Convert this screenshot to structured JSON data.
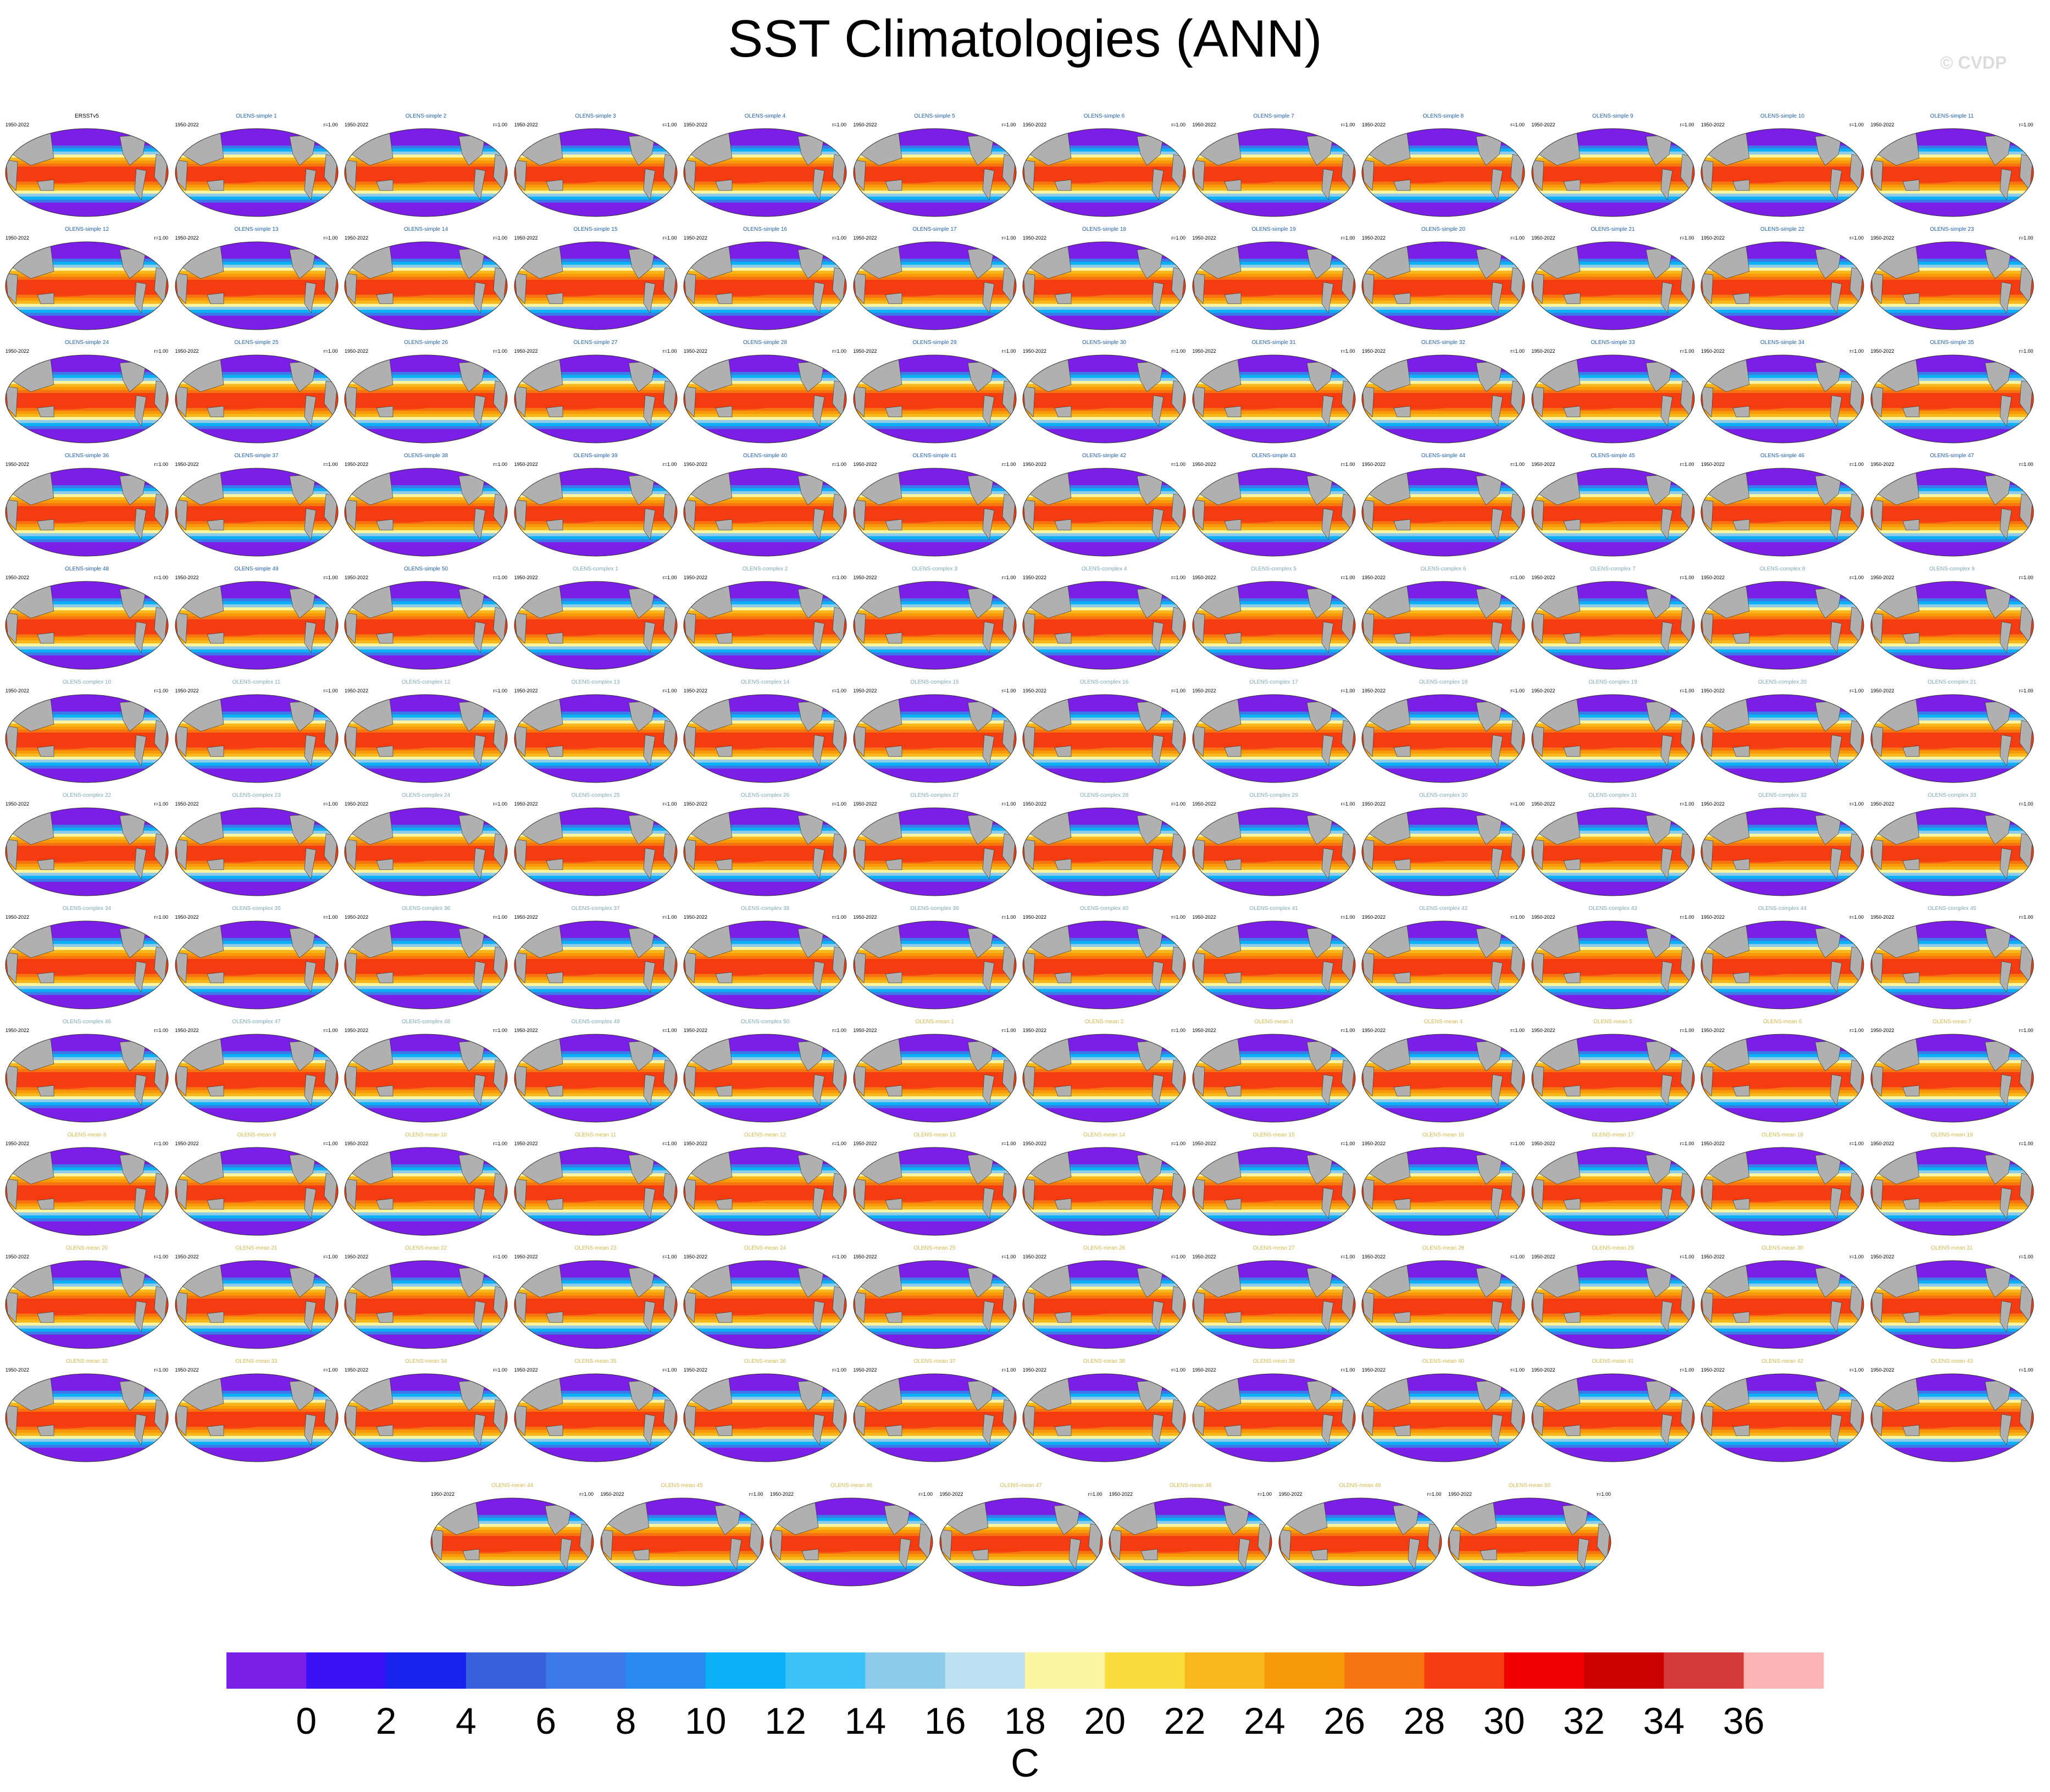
{
  "page": {
    "title": "SST Climatologies (ANN)",
    "watermark": "© CVDP"
  },
  "chart_data": {
    "type": "heatmap",
    "title": "SST Climatologies (ANN)",
    "description_of_panels": "Grid of global annual-mean SST climatology maps (oval projection), one per dataset",
    "panel_period": "1950-2022",
    "panel_pattern_corr": "r=1.00",
    "panels": [
      {
        "name": "ERSSTv5",
        "group": "obs"
      },
      {
        "name": "OLENS-simple 1",
        "group": "simple"
      },
      {
        "name": "OLENS-simple 2",
        "group": "simple"
      },
      {
        "name": "OLENS-simple 3",
        "group": "simple"
      },
      {
        "name": "OLENS-simple 4",
        "group": "simple"
      },
      {
        "name": "OLENS-simple 5",
        "group": "simple"
      },
      {
        "name": "OLENS-simple 6",
        "group": "simple"
      },
      {
        "name": "OLENS-simple 7",
        "group": "simple"
      },
      {
        "name": "OLENS-simple 8",
        "group": "simple"
      },
      {
        "name": "OLENS-simple 9",
        "group": "simple"
      },
      {
        "name": "OLENS-simple 10",
        "group": "simple"
      },
      {
        "name": "OLENS-simple 11",
        "group": "simple"
      },
      {
        "name": "OLENS-simple 12",
        "group": "simple"
      },
      {
        "name": "OLENS-simple 13",
        "group": "simple"
      },
      {
        "name": "OLENS-simple 14",
        "group": "simple"
      },
      {
        "name": "OLENS-simple 15",
        "group": "simple"
      },
      {
        "name": "OLENS-simple 16",
        "group": "simple"
      },
      {
        "name": "OLENS-simple 17",
        "group": "simple"
      },
      {
        "name": "OLENS-simple 18",
        "group": "simple"
      },
      {
        "name": "OLENS-simple 19",
        "group": "simple"
      },
      {
        "name": "OLENS-simple 20",
        "group": "simple"
      },
      {
        "name": "OLENS-simple 21",
        "group": "simple"
      },
      {
        "name": "OLENS-simple 22",
        "group": "simple"
      },
      {
        "name": "OLENS-simple 23",
        "group": "simple"
      },
      {
        "name": "OLENS-simple 24",
        "group": "simple"
      },
      {
        "name": "OLENS-simple 25",
        "group": "simple"
      },
      {
        "name": "OLENS-simple 26",
        "group": "simple"
      },
      {
        "name": "OLENS-simple 27",
        "group": "simple"
      },
      {
        "name": "OLENS-simple 28",
        "group": "simple"
      },
      {
        "name": "OLENS-simple 29",
        "group": "simple"
      },
      {
        "name": "OLENS-simple 30",
        "group": "simple"
      },
      {
        "name": "OLENS-simple 31",
        "group": "simple"
      },
      {
        "name": "OLENS-simple 32",
        "group": "simple"
      },
      {
        "name": "OLENS-simple 33",
        "group": "simple"
      },
      {
        "name": "OLENS-simple 34",
        "group": "simple"
      },
      {
        "name": "OLENS-simple 35",
        "group": "simple"
      },
      {
        "name": "OLENS-simple 36",
        "group": "simple"
      },
      {
        "name": "OLENS-simple 37",
        "group": "simple"
      },
      {
        "name": "OLENS-simple 38",
        "group": "simple"
      },
      {
        "name": "OLENS-simple 39",
        "group": "simple"
      },
      {
        "name": "OLENS-simple 40",
        "group": "simple"
      },
      {
        "name": "OLENS-simple 41",
        "group": "simple"
      },
      {
        "name": "OLENS-simple 42",
        "group": "simple"
      },
      {
        "name": "OLENS-simple 43",
        "group": "simple"
      },
      {
        "name": "OLENS-simple 44",
        "group": "simple"
      },
      {
        "name": "OLENS-simple 45",
        "group": "simple"
      },
      {
        "name": "OLENS-simple 46",
        "group": "simple"
      },
      {
        "name": "OLENS-simple 47",
        "group": "simple"
      },
      {
        "name": "OLENS-simple 48",
        "group": "simple"
      },
      {
        "name": "OLENS-simple 49",
        "group": "simple"
      },
      {
        "name": "OLENS-simple 50",
        "group": "simple"
      },
      {
        "name": "OLENS-complex 1",
        "group": "complex"
      },
      {
        "name": "OLENS-complex 2",
        "group": "complex"
      },
      {
        "name": "OLENS-complex 3",
        "group": "complex"
      },
      {
        "name": "OLENS-complex 4",
        "group": "complex"
      },
      {
        "name": "OLENS-complex 5",
        "group": "complex"
      },
      {
        "name": "OLENS-complex 6",
        "group": "complex"
      },
      {
        "name": "OLENS-complex 7",
        "group": "complex"
      },
      {
        "name": "OLENS-complex 8",
        "group": "complex"
      },
      {
        "name": "OLENS-complex 9",
        "group": "complex"
      },
      {
        "name": "OLENS-complex 10",
        "group": "complex"
      },
      {
        "name": "OLENS-complex 11",
        "group": "complex"
      },
      {
        "name": "OLENS-complex 12",
        "group": "complex"
      },
      {
        "name": "OLENS-complex 13",
        "group": "complex"
      },
      {
        "name": "OLENS-complex 14",
        "group": "complex"
      },
      {
        "name": "OLENS-complex 15",
        "group": "complex"
      },
      {
        "name": "OLENS-complex 16",
        "group": "complex"
      },
      {
        "name": "OLENS-complex 17",
        "group": "complex"
      },
      {
        "name": "OLENS-complex 18",
        "group": "complex"
      },
      {
        "name": "OLENS-complex 19",
        "group": "complex"
      },
      {
        "name": "OLENS-complex 20",
        "group": "complex"
      },
      {
        "name": "OLENS-complex 21",
        "group": "complex"
      },
      {
        "name": "OLENS-complex 22",
        "group": "complex"
      },
      {
        "name": "OLENS-complex 23",
        "group": "complex"
      },
      {
        "name": "OLENS-complex 24",
        "group": "complex"
      },
      {
        "name": "OLENS-complex 25",
        "group": "complex"
      },
      {
        "name": "OLENS-complex 26",
        "group": "complex"
      },
      {
        "name": "OLENS-complex 27",
        "group": "complex"
      },
      {
        "name": "OLENS-complex 28",
        "group": "complex"
      },
      {
        "name": "OLENS-complex 29",
        "group": "complex"
      },
      {
        "name": "OLENS-complex 30",
        "group": "complex"
      },
      {
        "name": "OLENS-complex 31",
        "group": "complex"
      },
      {
        "name": "OLENS-complex 32",
        "group": "complex"
      },
      {
        "name": "OLENS-complex 33",
        "group": "complex"
      },
      {
        "name": "OLENS-complex 34",
        "group": "complex"
      },
      {
        "name": "OLENS-complex 35",
        "group": "complex"
      },
      {
        "name": "OLENS-complex 36",
        "group": "complex"
      },
      {
        "name": "OLENS-complex 37",
        "group": "complex"
      },
      {
        "name": "OLENS-complex 38",
        "group": "complex"
      },
      {
        "name": "OLENS-complex 39",
        "group": "complex"
      },
      {
        "name": "OLENS-complex 40",
        "group": "complex"
      },
      {
        "name": "OLENS-complex 41",
        "group": "complex"
      },
      {
        "name": "OLENS-complex 42",
        "group": "complex"
      },
      {
        "name": "OLENS-complex 43",
        "group": "complex"
      },
      {
        "name": "OLENS-complex 44",
        "group": "complex"
      },
      {
        "name": "OLENS-complex 45",
        "group": "complex"
      },
      {
        "name": "OLENS-complex 46",
        "group": "complex"
      },
      {
        "name": "OLENS-complex 47",
        "group": "complex"
      },
      {
        "name": "OLENS-complex 48",
        "group": "complex"
      },
      {
        "name": "OLENS-complex 49",
        "group": "complex"
      },
      {
        "name": "OLENS-complex 50",
        "group": "complex"
      },
      {
        "name": "OLENS-mean 1",
        "group": "mean"
      },
      {
        "name": "OLENS-mean 2",
        "group": "mean"
      },
      {
        "name": "OLENS-mean 3",
        "group": "mean"
      },
      {
        "name": "OLENS-mean 4",
        "group": "mean"
      },
      {
        "name": "OLENS-mean 5",
        "group": "mean"
      },
      {
        "name": "OLENS-mean 6",
        "group": "mean"
      },
      {
        "name": "OLENS-mean 7",
        "group": "mean"
      },
      {
        "name": "OLENS-mean 8",
        "group": "mean"
      },
      {
        "name": "OLENS-mean 9",
        "group": "mean"
      },
      {
        "name": "OLENS-mean 10",
        "group": "mean"
      },
      {
        "name": "OLENS-mean 11",
        "group": "mean"
      },
      {
        "name": "OLENS-mean 12",
        "group": "mean"
      },
      {
        "name": "OLENS-mean 13",
        "group": "mean"
      },
      {
        "name": "OLENS-mean 14",
        "group": "mean"
      },
      {
        "name": "OLENS-mean 15",
        "group": "mean"
      },
      {
        "name": "OLENS-mean 16",
        "group": "mean"
      },
      {
        "name": "OLENS-mean 17",
        "group": "mean"
      },
      {
        "name": "OLENS-mean 18",
        "group": "mean"
      },
      {
        "name": "OLENS-mean 19",
        "group": "mean"
      },
      {
        "name": "OLENS-mean 20",
        "group": "mean"
      },
      {
        "name": "OLENS-mean 21",
        "group": "mean"
      },
      {
        "name": "OLENS-mean 22",
        "group": "mean"
      },
      {
        "name": "OLENS-mean 23",
        "group": "mean"
      },
      {
        "name": "OLENS-mean 24",
        "group": "mean"
      },
      {
        "name": "OLENS-mean 25",
        "group": "mean"
      },
      {
        "name": "OLENS-mean 26",
        "group": "mean"
      },
      {
        "name": "OLENS-mean 27",
        "group": "mean"
      },
      {
        "name": "OLENS-mean 28",
        "group": "mean"
      },
      {
        "name": "OLENS-mean 29",
        "group": "mean"
      },
      {
        "name": "OLENS-mean 30",
        "group": "mean"
      },
      {
        "name": "OLENS-mean 31",
        "group": "mean"
      },
      {
        "name": "OLENS-mean 32",
        "group": "mean"
      },
      {
        "name": "OLENS-mean 33",
        "group": "mean"
      },
      {
        "name": "OLENS-mean 34",
        "group": "mean"
      },
      {
        "name": "OLENS-mean 35",
        "group": "mean"
      },
      {
        "name": "OLENS-mean 36",
        "group": "mean"
      },
      {
        "name": "OLENS-mean 37",
        "group": "mean"
      },
      {
        "name": "OLENS-mean 38",
        "group": "mean"
      },
      {
        "name": "OLENS-mean 39",
        "group": "mean"
      },
      {
        "name": "OLENS-mean 40",
        "group": "mean"
      },
      {
        "name": "OLENS-mean 41",
        "group": "mean"
      },
      {
        "name": "OLENS-mean 42",
        "group": "mean"
      },
      {
        "name": "OLENS-mean 43",
        "group": "mean"
      },
      {
        "name": "OLENS-mean 44",
        "group": "mean"
      },
      {
        "name": "OLENS-mean 45",
        "group": "mean"
      },
      {
        "name": "OLENS-mean 46",
        "group": "mean"
      },
      {
        "name": "OLENS-mean 47",
        "group": "mean"
      },
      {
        "name": "OLENS-mean 48",
        "group": "mean"
      },
      {
        "name": "OLENS-mean 49",
        "group": "mean"
      },
      {
        "name": "OLENS-mean 50",
        "group": "mean"
      }
    ],
    "group_title_colors": {
      "obs": "#000000",
      "simple": "#1f5fb4",
      "complex": "#7fa8b8",
      "mean": "#d4b84a"
    },
    "map_colors": {
      "land": "#b0b0b0",
      "outline": "#333333"
    },
    "colorbar": {
      "label": "C",
      "ticks": [
        "0",
        "2",
        "4",
        "6",
        "8",
        "10",
        "12",
        "14",
        "16",
        "18",
        "20",
        "22",
        "24",
        "26",
        "28",
        "30",
        "32",
        "34",
        "36"
      ],
      "colors": [
        "#7b1fe8",
        "#3a10f5",
        "#1623ee",
        "#3860dd",
        "#3c79e8",
        "#2b8af2",
        "#0ab1f7",
        "#3cc1f5",
        "#8ecbea",
        "#bde0f2",
        "#fbf4a0",
        "#fadc3c",
        "#f8b81c",
        "#f89a08",
        "#f77510",
        "#f53c10",
        "#f00000",
        "#cd0000",
        "#d53a3a",
        "#fcb4b4"
      ]
    }
  }
}
